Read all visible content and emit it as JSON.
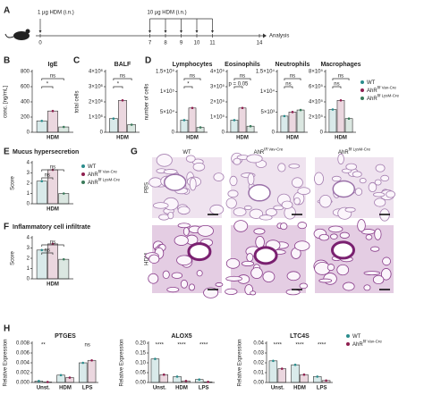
{
  "timeline": {
    "panel": "A",
    "dose1": "1 µg HDM (i.n.)",
    "dose2": "10 µg HDM (i.n.)",
    "days": [
      0,
      7,
      8,
      9,
      10,
      11,
      14
    ],
    "dose1_days": [
      0
    ],
    "dose2_days": [
      7,
      8,
      9,
      10,
      11
    ],
    "end": "Analysis"
  },
  "micrographs": {
    "panel": "G",
    "columns": [
      {
        "text": "WT"
      },
      {
        "text": "AhR",
        "sup": "f/f Vav-Cre"
      },
      {
        "text": "AhR",
        "sup": "f/f LysM-Cre"
      }
    ],
    "rows": [
      "PBS",
      "HDM"
    ]
  },
  "chart_data": [
    {
      "type": "bar",
      "panel": "B",
      "title": "IgE",
      "ylabel": "conc. [ng/mL]",
      "categories": [
        "HDM"
      ],
      "ylim": [
        0,
        800
      ],
      "yticks": [
        0,
        200,
        400,
        600,
        800
      ],
      "annotations": [
        "*",
        "ns"
      ],
      "series": [
        {
          "color": "#2a8c8c",
          "values": [
            150
          ]
        },
        {
          "color": "#8e1f4f",
          "values": [
            280
          ]
        },
        {
          "color": "#3a7a5a",
          "values": [
            70
          ]
        }
      ]
    },
    {
      "type": "bar",
      "panel": "C",
      "title": "BALF",
      "ylabel": "total cells",
      "categories": [
        "HDM"
      ],
      "ylim": [
        0,
        4000000
      ],
      "yticks": [
        0,
        {
          "value": 1000000,
          "label": "1×10⁶"
        },
        {
          "value": 2000000,
          "label": "2×10⁶"
        },
        {
          "value": 3000000,
          "label": "3×10⁶"
        },
        {
          "value": 4000000,
          "label": "4×10⁶"
        }
      ],
      "annotations": [
        "*",
        "ns"
      ],
      "series": [
        {
          "color": "#2a8c8c",
          "values": [
            900000
          ]
        },
        {
          "color": "#8e1f4f",
          "values": [
            2100000
          ]
        },
        {
          "color": "#3a7a5a",
          "values": [
            500000
          ]
        }
      ]
    },
    {
      "type": "bar",
      "panel": "D",
      "title": "Lymphocytes",
      "ylabel": "number of cells",
      "categories": [
        "HDM"
      ],
      "ylim": [
        0,
        150000
      ],
      "yticks": [
        0,
        {
          "value": 50000,
          "label": "5×10⁴"
        },
        {
          "value": 100000,
          "label": "1×10⁵"
        },
        {
          "value": 150000,
          "label": "1.5×10⁵"
        }
      ],
      "annotations": [
        "*",
        "ns"
      ],
      "series": [
        {
          "color": "#2a8c8c",
          "values": [
            30000
          ]
        },
        {
          "color": "#8e1f4f",
          "values": [
            60000
          ]
        },
        {
          "color": "#3a7a5a",
          "values": [
            12000
          ]
        }
      ]
    },
    {
      "type": "bar",
      "title": "Eosinophils",
      "categories": [
        "HDM"
      ],
      "ylim": [
        0,
        400000
      ],
      "yticks": [
        0,
        {
          "value": 100000,
          "label": "1×10⁵"
        },
        {
          "value": 200000,
          "label": "2×10⁵"
        },
        {
          "value": 300000,
          "label": "3×10⁵"
        },
        {
          "value": 400000,
          "label": "4×10⁵"
        }
      ],
      "annotations": [
        "p = 0.05",
        "ns"
      ],
      "series": [
        {
          "color": "#2a8c8c",
          "values": [
            80000
          ]
        },
        {
          "color": "#8e1f4f",
          "values": [
            160000
          ]
        },
        {
          "color": "#3a7a5a",
          "values": [
            40000
          ]
        }
      ]
    },
    {
      "type": "bar",
      "title": "Neutrophils",
      "categories": [
        "HDM"
      ],
      "ylim": [
        0,
        15000
      ],
      "yticks": [
        0,
        {
          "value": 5000,
          "label": "5×10³"
        },
        {
          "value": 10000,
          "label": "1×10⁴"
        },
        {
          "value": 15000,
          "label": "1.5×10⁴"
        }
      ],
      "annotations": [
        "ns",
        "ns"
      ],
      "series": [
        {
          "color": "#2a8c8c",
          "values": [
            4000
          ]
        },
        {
          "color": "#8e1f4f",
          "values": [
            5000
          ]
        },
        {
          "color": "#3a7a5a",
          "values": [
            5500
          ]
        }
      ]
    },
    {
      "type": "bar",
      "title": "Macrophages",
      "categories": [
        "HDM"
      ],
      "ylim": [
        0,
        800000
      ],
      "yticks": [
        0,
        {
          "value": 200000,
          "label": "2×10⁵"
        },
        {
          "value": 400000,
          "label": "4×10⁵"
        },
        {
          "value": 600000,
          "label": "6×10⁵"
        },
        {
          "value": 800000,
          "label": "8×10⁵"
        }
      ],
      "annotations": [
        "ns",
        "ns"
      ],
      "series": [
        {
          "name": "WT",
          "color": "#2a8c8c",
          "values": [
            300000
          ]
        },
        {
          "name": "AhR",
          "sup": "f/f Vav-Cre",
          "color": "#8e1f4f",
          "values": [
            420000
          ]
        },
        {
          "name": "AhR",
          "sup": "f/f LysM-Cre",
          "color": "#3a7a5a",
          "values": [
            180000
          ]
        }
      ]
    },
    {
      "type": "bar",
      "panel": "E",
      "title": "Mucus hypersecretion",
      "ylabel": "Score",
      "categories": [
        "HDM"
      ],
      "ylim": [
        0,
        4
      ],
      "yticks": [
        0,
        1,
        2,
        3,
        4
      ],
      "annotations": [
        "ns",
        "ns"
      ],
      "series": [
        {
          "name": "WT",
          "color": "#2a8c8c",
          "values": [
            2.2
          ]
        },
        {
          "name": "AhR",
          "sup": "f/f Vav-Cre",
          "color": "#8e1f4f",
          "values": [
            3.3
          ]
        },
        {
          "name": "AhR",
          "sup": "f/f LysM-Cre",
          "color": "#3a7a5a",
          "values": [
            1
          ]
        }
      ]
    },
    {
      "type": "bar",
      "panel": "F",
      "title": "Inflammatory cell infiltrate",
      "ylabel": "Score",
      "categories": [
        "HDM"
      ],
      "ylim": [
        0,
        4
      ],
      "yticks": [
        0,
        1,
        2,
        3,
        4
      ],
      "annotations": [
        "ns",
        "ns"
      ],
      "series": [
        {
          "color": "#2a8c8c",
          "values": [
            2.8
          ]
        },
        {
          "color": "#8e1f4f",
          "values": [
            3.4
          ]
        },
        {
          "color": "#3a7a5a",
          "values": [
            1.9
          ]
        }
      ]
    },
    {
      "type": "bar",
      "panel": "H",
      "title": "PTGES",
      "ylabel": "Relative Expression",
      "categories": [
        "Unst.",
        "HDM",
        "LPS"
      ],
      "ylim": [
        0,
        0.008
      ],
      "yticks": [
        {
          "value": 0,
          "label": "0.000"
        },
        {
          "value": 0.002,
          "label": "0.002"
        },
        {
          "value": 0.004,
          "label": "0.004"
        },
        {
          "value": 0.006,
          "label": "0.006"
        },
        {
          "value": 0.008,
          "label": "0.008"
        }
      ],
      "annotations": [
        "**",
        null,
        "ns"
      ],
      "series": [
        {
          "color": "#2a8c8c",
          "values": [
            0.0003,
            0.0015,
            0.004
          ]
        },
        {
          "color": "#8e1f4f",
          "values": [
            0.0001,
            0.001,
            0.0045
          ]
        }
      ]
    },
    {
      "type": "bar",
      "title": "ALOX5",
      "ylabel": "Relative Expression",
      "categories": [
        "Unst.",
        "HDM",
        "LPS"
      ],
      "ylim": [
        0,
        0.2
      ],
      "yticks": [
        {
          "value": 0,
          "label": "0.00"
        },
        {
          "value": 0.05,
          "label": "0.05"
        },
        {
          "value": 0.1,
          "label": "0.10"
        },
        {
          "value": 0.15,
          "label": "0.15"
        },
        {
          "value": 0.2,
          "label": "0.20"
        }
      ],
      "annotations": [
        "****",
        "****",
        "****"
      ],
      "series": [
        {
          "color": "#2a8c8c",
          "values": [
            0.12,
            0.03,
            0.015
          ]
        },
        {
          "color": "#8e1f4f",
          "values": [
            0.04,
            0.008,
            0.003
          ]
        }
      ]
    },
    {
      "type": "bar",
      "title": "LTC4S",
      "ylabel": "Relative Expression",
      "categories": [
        "Unst.",
        "HDM",
        "LPS"
      ],
      "ylim": [
        0,
        0.04
      ],
      "yticks": [
        {
          "value": 0,
          "label": "0.00"
        },
        {
          "value": 0.01,
          "label": "0.01"
        },
        {
          "value": 0.02,
          "label": "0.02"
        },
        {
          "value": 0.03,
          "label": "0.03"
        },
        {
          "value": 0.04,
          "label": "0.04"
        }
      ],
      "annotations": [
        "****",
        "****",
        "****"
      ],
      "series": [
        {
          "name": "WT",
          "color": "#2a8c8c",
          "values": [
            0.022,
            0.018,
            0.006
          ]
        },
        {
          "name": "AhR",
          "sup": "f/f Vav-Cre",
          "color": "#8e1f4f",
          "values": [
            0.014,
            0.008,
            0.002
          ]
        }
      ]
    }
  ]
}
